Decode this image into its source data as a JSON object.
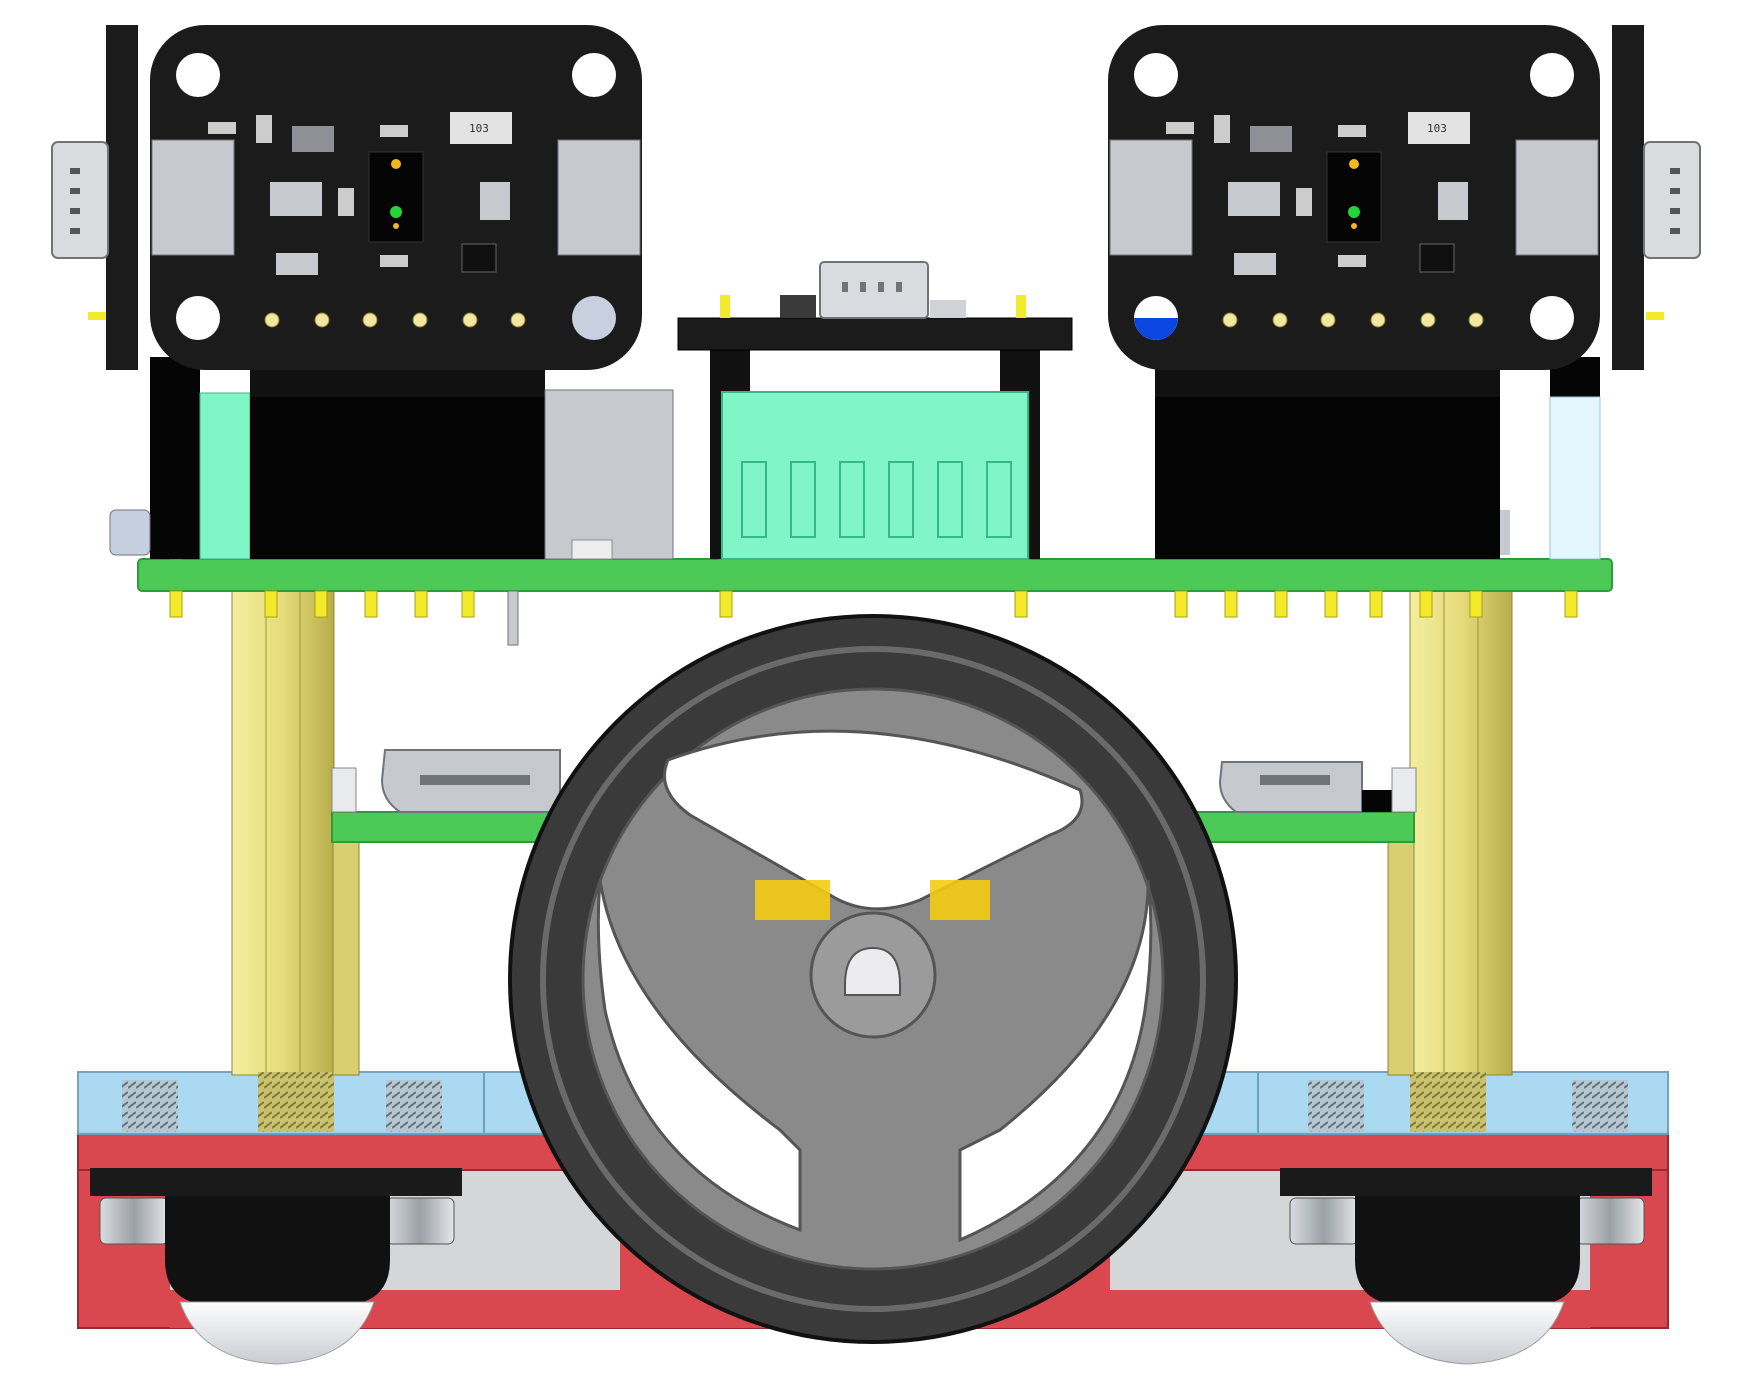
{
  "labels": {
    "resistor_left": "103",
    "resistor_right": "103"
  },
  "colors": {
    "background": "#ffffff",
    "pcb_black": "#1b1b1b",
    "pcb_green": "#4cc957",
    "pcb_green_edge": "#2f9a3a",
    "header_black": "#050505",
    "connector_mint": "#7ff5c8",
    "brass": "#e6dc7c",
    "brass_shadow": "#b8ad4a",
    "acrylic_blue": "#a7d8f2",
    "chassis_red": "#d9474f",
    "tire": "#3a3a3a",
    "hub_gray": "#8a8a8a",
    "mount_yellow": "#f5cc12",
    "pin_gold": "#f2ea2a",
    "silver": "#c6c9ce",
    "led_amber": "#f2b71f",
    "led_green": "#23d43a"
  },
  "icons": {
    "sensor_left": "sensor-board-icon",
    "sensor_right": "sensor-board-icon",
    "wheel": "wheel-icon",
    "caster": "ball-caster-icon"
  }
}
